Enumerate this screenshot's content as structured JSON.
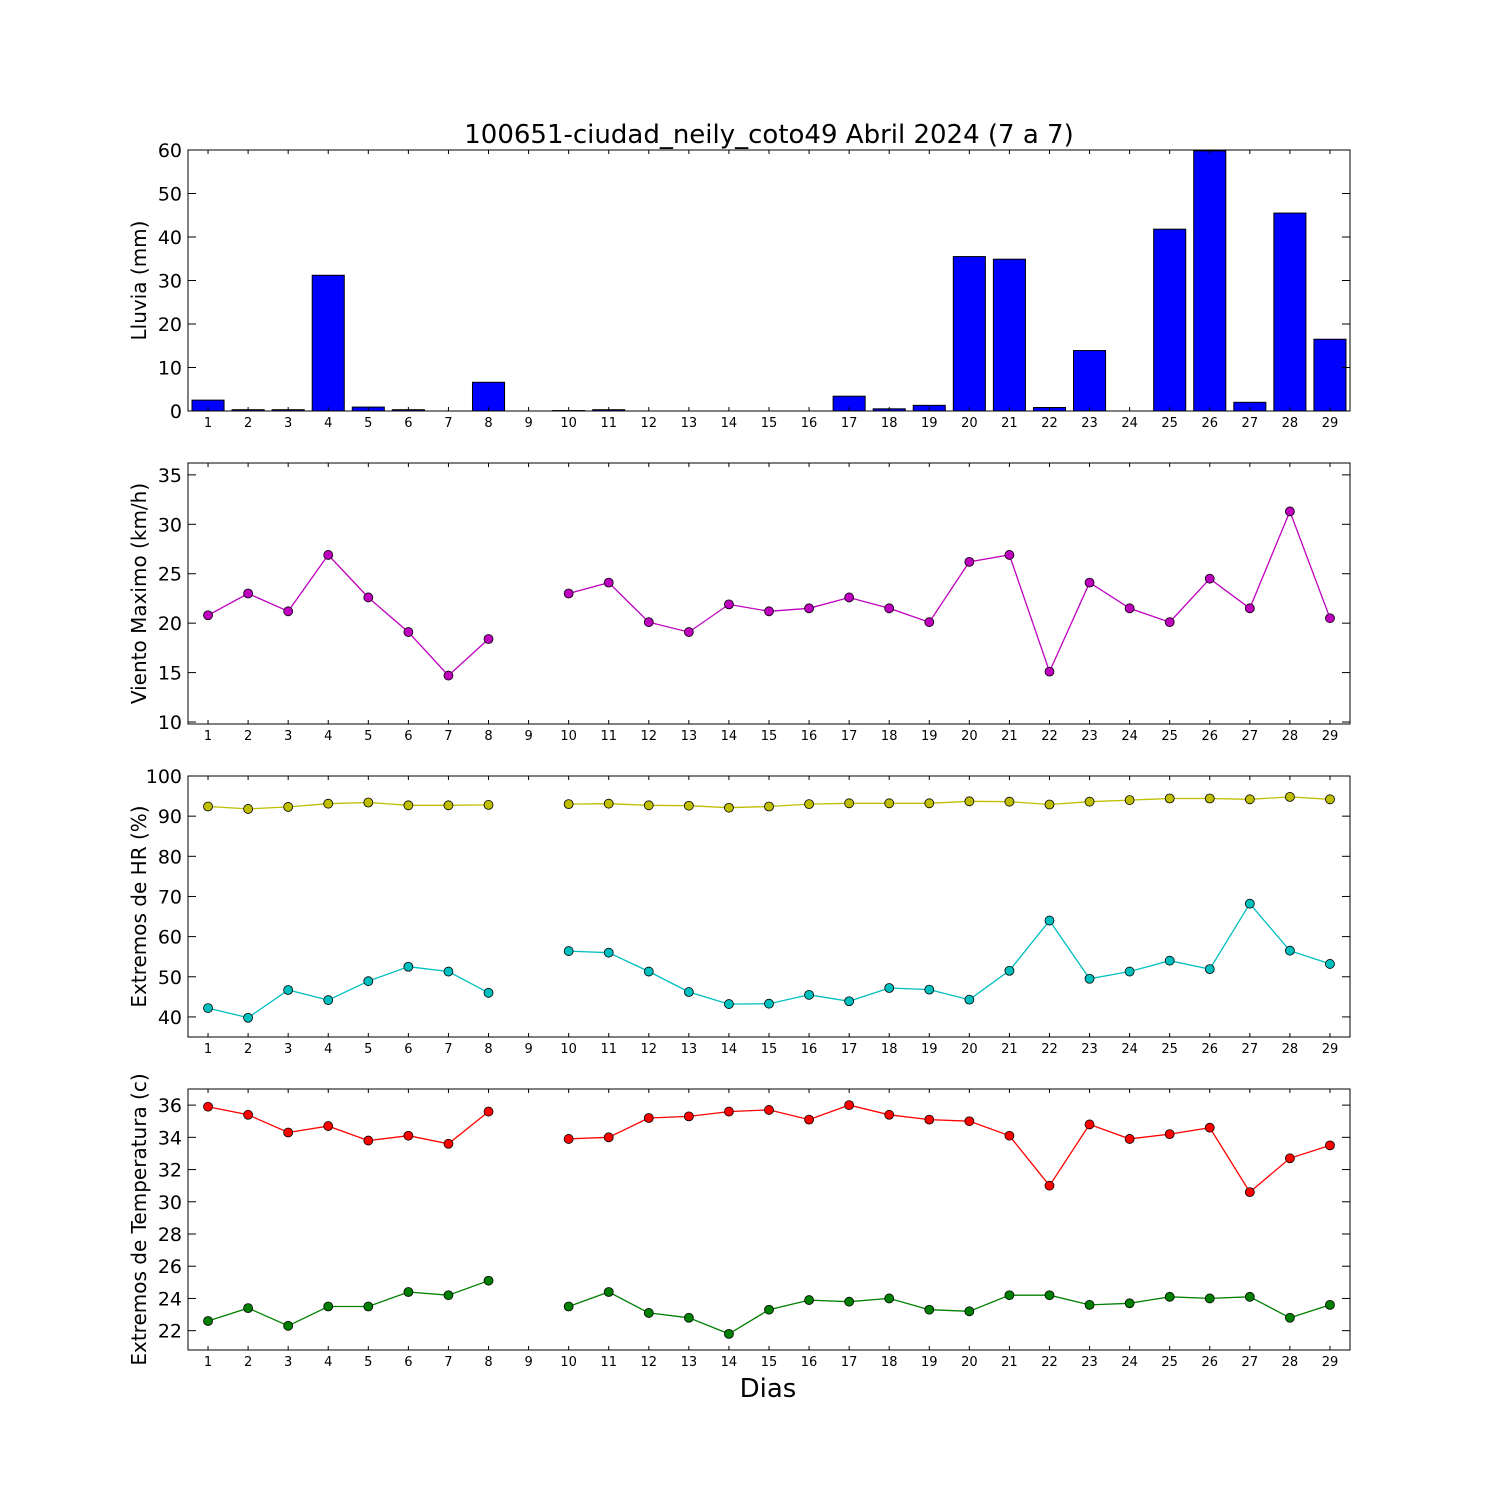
{
  "title": "100651-ciudad_neily_coto49 Abril 2024  (7 a 7)",
  "xlabel": "Dias",
  "colors": {
    "rain_bar": "#0000ff",
    "wind": "#bf00bf",
    "hr_max": "#bfbf00",
    "hr_min": "#00bfbf",
    "temp_max": "#ff0000",
    "temp_min": "#008000"
  },
  "chart_data": [
    {
      "type": "bar",
      "ylabel": "Lluvia (mm)",
      "ylim": [
        0,
        60
      ],
      "yticks": [
        0,
        10,
        20,
        30,
        40,
        50,
        60
      ],
      "x": [
        1,
        2,
        3,
        4,
        5,
        6,
        7,
        8,
        9,
        10,
        11,
        12,
        13,
        14,
        15,
        16,
        17,
        18,
        19,
        20,
        21,
        22,
        23,
        24,
        25,
        26,
        27,
        28,
        29
      ],
      "series": [
        {
          "values": [
            2.5,
            0.3,
            0.3,
            31.2,
            0.9,
            0.3,
            0,
            6.6,
            0,
            0.1,
            0.3,
            0,
            0,
            0,
            0,
            0,
            3.4,
            0.5,
            1.3,
            35.5,
            34.9,
            0.8,
            13.9,
            0,
            41.8,
            59.8,
            2.0,
            45.5,
            16.5
          ]
        }
      ]
    },
    {
      "type": "line",
      "ylabel": "Viento Maximo (km/h)",
      "ylim": [
        9.8,
        36.2
      ],
      "yticks": [
        10,
        15,
        20,
        25,
        30,
        35
      ],
      "x": [
        1,
        2,
        3,
        4,
        5,
        6,
        7,
        8,
        9,
        10,
        11,
        12,
        13,
        14,
        15,
        16,
        17,
        18,
        19,
        20,
        21,
        22,
        23,
        24,
        25,
        26,
        27,
        28,
        29
      ],
      "series": [
        {
          "values": [
            20.8,
            23.0,
            21.2,
            26.9,
            22.6,
            19.1,
            14.7,
            18.4,
            null,
            23.0,
            24.1,
            20.1,
            19.1,
            21.9,
            21.2,
            21.5,
            22.6,
            21.5,
            20.1,
            26.2,
            26.9,
            15.1,
            24.1,
            21.5,
            20.1,
            24.5,
            21.5,
            31.3,
            20.5
          ]
        }
      ]
    },
    {
      "type": "line",
      "ylabel": "Extremos de HR (%)",
      "ylim": [
        35,
        100
      ],
      "yticks": [
        40,
        50,
        60,
        70,
        80,
        90,
        100
      ],
      "x": [
        1,
        2,
        3,
        4,
        5,
        6,
        7,
        8,
        9,
        10,
        11,
        12,
        13,
        14,
        15,
        16,
        17,
        18,
        19,
        20,
        21,
        22,
        23,
        24,
        25,
        26,
        27,
        28,
        29
      ],
      "series": [
        {
          "values": [
            92.4,
            91.8,
            92.3,
            93.1,
            93.4,
            92.7,
            92.7,
            92.8,
            null,
            93.0,
            93.1,
            92.7,
            92.6,
            92.1,
            92.4,
            93.0,
            93.2,
            93.2,
            93.2,
            93.7,
            93.6,
            92.9,
            93.6,
            94.0,
            94.4,
            94.4,
            94.2,
            94.8,
            94.2
          ]
        },
        {
          "values": [
            42.2,
            39.8,
            46.7,
            44.2,
            48.9,
            52.5,
            51.3,
            46.0,
            null,
            56.4,
            56.0,
            51.3,
            46.2,
            43.2,
            43.3,
            45.5,
            43.9,
            47.2,
            46.8,
            44.3,
            51.5,
            64.0,
            49.5,
            51.3,
            54.0,
            51.9,
            68.2,
            56.5,
            53.2
          ]
        }
      ]
    },
    {
      "type": "line",
      "ylabel": "Extremos de Temperatura (c)",
      "ylim": [
        20.8,
        37.0
      ],
      "yticks": [
        22,
        24,
        26,
        28,
        30,
        32,
        34,
        36
      ],
      "x": [
        1,
        2,
        3,
        4,
        5,
        6,
        7,
        8,
        9,
        10,
        11,
        12,
        13,
        14,
        15,
        16,
        17,
        18,
        19,
        20,
        21,
        22,
        23,
        24,
        25,
        26,
        27,
        28,
        29
      ],
      "series": [
        {
          "values": [
            35.9,
            35.4,
            34.3,
            34.7,
            33.8,
            34.1,
            33.6,
            35.6,
            null,
            33.9,
            34.0,
            35.2,
            35.3,
            35.6,
            35.7,
            35.1,
            36.0,
            35.4,
            35.1,
            35.0,
            34.1,
            31.0,
            34.8,
            33.9,
            34.2,
            34.6,
            30.6,
            32.7,
            33.5
          ]
        },
        {
          "values": [
            22.6,
            23.4,
            22.3,
            23.5,
            23.5,
            24.4,
            24.2,
            25.1,
            null,
            23.5,
            24.4,
            23.1,
            22.8,
            21.8,
            23.3,
            23.9,
            23.8,
            24.0,
            23.3,
            23.2,
            24.2,
            24.2,
            23.6,
            23.7,
            24.1,
            24.0,
            24.1,
            22.8,
            23.6
          ]
        }
      ]
    }
  ]
}
